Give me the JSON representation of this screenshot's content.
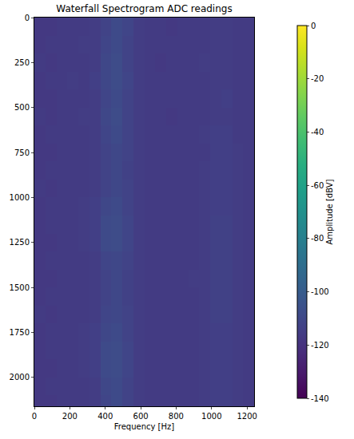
{
  "chart_data": {
    "type": "heatmap",
    "title": "Waterfall Spectrogram ADC readings",
    "x_label": "Frequency [Hz]",
    "color": "Viridis",
    "x": [
      31,
      93,
      155,
      217,
      279,
      341,
      403,
      465,
      527,
      589,
      651,
      713,
      775,
      837,
      899,
      961,
      1023,
      1085,
      1147,
      1209
    ],
    "y": [
      50,
      150,
      250,
      350,
      450,
      550,
      650,
      750,
      850,
      950,
      1050,
      1150,
      1250,
      1350,
      1450,
      1550,
      1650,
      1750,
      1850,
      1950,
      2050,
      2150
    ],
    "z": [
      [
        -117,
        -117,
        -116,
        -116,
        -116,
        -115,
        -112,
        -109,
        -111,
        -115,
        -116,
        -116,
        -117,
        -116,
        -116,
        -116,
        -115,
        -115,
        -116,
        -116
      ],
      [
        -117,
        -116,
        -116,
        -116,
        -115,
        -115,
        -111,
        -109,
        -112,
        -115,
        -116,
        -116,
        -116,
        -116,
        -116,
        -116,
        -115,
        -115,
        -116,
        -116
      ],
      [
        -116,
        -117,
        -116,
        -116,
        -116,
        -115,
        -110,
        -108,
        -112,
        -115,
        -116,
        -117,
        -116,
        -116,
        -116,
        -115,
        -115,
        -115,
        -116,
        -116
      ],
      [
        -117,
        -116,
        -116,
        -115,
        -116,
        -114,
        -110,
        -108,
        -111,
        -115,
        -116,
        -116,
        -116,
        -116,
        -116,
        -116,
        -115,
        -115,
        -116,
        -116
      ],
      [
        -117,
        -117,
        -116,
        -116,
        -116,
        -115,
        -111,
        -109,
        -112,
        -115,
        -116,
        -116,
        -116,
        -116,
        -116,
        -116,
        -115,
        -114,
        -116,
        -116
      ],
      [
        -116,
        -117,
        -116,
        -116,
        -115,
        -115,
        -110,
        -108,
        -112,
        -115,
        -116,
        -116,
        -117,
        -116,
        -116,
        -116,
        -115,
        -115,
        -116,
        -116
      ],
      [
        -117,
        -116,
        -116,
        -116,
        -116,
        -115,
        -111,
        -109,
        -112,
        -115,
        -116,
        -116,
        -116,
        -116,
        -116,
        -115,
        -114,
        -114,
        -116,
        -116
      ],
      [
        -117,
        -117,
        -116,
        -116,
        -116,
        -115,
        -112,
        -110,
        -112,
        -115,
        -116,
        -116,
        -116,
        -116,
        -116,
        -116,
        -114,
        -114,
        -115,
        -116
      ],
      [
        -117,
        -116,
        -116,
        -116,
        -116,
        -115,
        -112,
        -110,
        -113,
        -115,
        -116,
        -116,
        -116,
        -116,
        -116,
        -115,
        -114,
        -114,
        -115,
        -116
      ],
      [
        -116,
        -117,
        -116,
        -116,
        -116,
        -115,
        -112,
        -110,
        -112,
        -115,
        -116,
        -116,
        -116,
        -116,
        -116,
        -115,
        -114,
        -114,
        -115,
        -116
      ],
      [
        -117,
        -116,
        -116,
        -116,
        -115,
        -114,
        -110,
        -109,
        -112,
        -115,
        -116,
        -116,
        -116,
        -116,
        -116,
        -115,
        -114,
        -114,
        -115,
        -116
      ],
      [
        -117,
        -116,
        -116,
        -116,
        -115,
        -114,
        -109,
        -108,
        -111,
        -115,
        -116,
        -116,
        -116,
        -116,
        -116,
        -115,
        -113,
        -113,
        -115,
        -116
      ],
      [
        -117,
        -117,
        -116,
        -116,
        -115,
        -114,
        -109,
        -108,
        -111,
        -115,
        -116,
        -116,
        -116,
        -116,
        -116,
        -115,
        -113,
        -113,
        -115,
        -116
      ],
      [
        -117,
        -116,
        -116,
        -116,
        -116,
        -115,
        -111,
        -110,
        -112,
        -115,
        -116,
        -116,
        -116,
        -116,
        -116,
        -115,
        -113,
        -113,
        -115,
        -116
      ],
      [
        -117,
        -117,
        -116,
        -116,
        -116,
        -115,
        -112,
        -110,
        -113,
        -115,
        -116,
        -116,
        -116,
        -116,
        -115,
        -115,
        -113,
        -113,
        -115,
        -116
      ],
      [
        -117,
        -116,
        -116,
        -116,
        -116,
        -115,
        -112,
        -110,
        -113,
        -115,
        -116,
        -116,
        -116,
        -116,
        -116,
        -115,
        -113,
        -113,
        -115,
        -116
      ],
      [
        -116,
        -117,
        -116,
        -116,
        -116,
        -115,
        -111,
        -110,
        -112,
        -115,
        -116,
        -116,
        -116,
        -116,
        -116,
        -115,
        -113,
        -113,
        -115,
        -116
      ],
      [
        -117,
        -116,
        -116,
        -116,
        -115,
        -114,
        -110,
        -109,
        -112,
        -115,
        -116,
        -116,
        -116,
        -116,
        -116,
        -115,
        -114,
        -114,
        -115,
        -116
      ],
      [
        -117,
        -116,
        -116,
        -116,
        -115,
        -114,
        -109,
        -108,
        -111,
        -115,
        -116,
        -116,
        -116,
        -116,
        -116,
        -115,
        -114,
        -114,
        -115,
        -116
      ],
      [
        -117,
        -117,
        -116,
        -116,
        -115,
        -114,
        -109,
        -108,
        -111,
        -115,
        -116,
        -116,
        -116,
        -116,
        -116,
        -115,
        -114,
        -114,
        -115,
        -116
      ],
      [
        -117,
        -116,
        -116,
        -116,
        -116,
        -115,
        -110,
        -109,
        -112,
        -115,
        -116,
        -116,
        -116,
        -116,
        -116,
        -115,
        -114,
        -114,
        -115,
        -116
      ],
      [
        -117,
        -117,
        -116,
        -116,
        -116,
        -115,
        -111,
        -109,
        -112,
        -115,
        -116,
        -116,
        -116,
        -116,
        -116,
        -115,
        -114,
        -114,
        -115,
        -116
      ]
    ],
    "xlim": [
      0,
      1240
    ],
    "xticks": [
      0,
      200,
      400,
      600,
      800,
      1000,
      1200
    ],
    "ylim": [
      2160,
      0
    ],
    "yticks": [
      0,
      250,
      500,
      750,
      1000,
      1250,
      1500,
      1750,
      2000
    ],
    "colorbar": {
      "label": "Amplitude [dBV]",
      "range": [
        -140,
        0
      ],
      "ticks": [
        0,
        -20,
        -40,
        -60,
        -80,
        -100,
        -120,
        -140
      ]
    }
  }
}
